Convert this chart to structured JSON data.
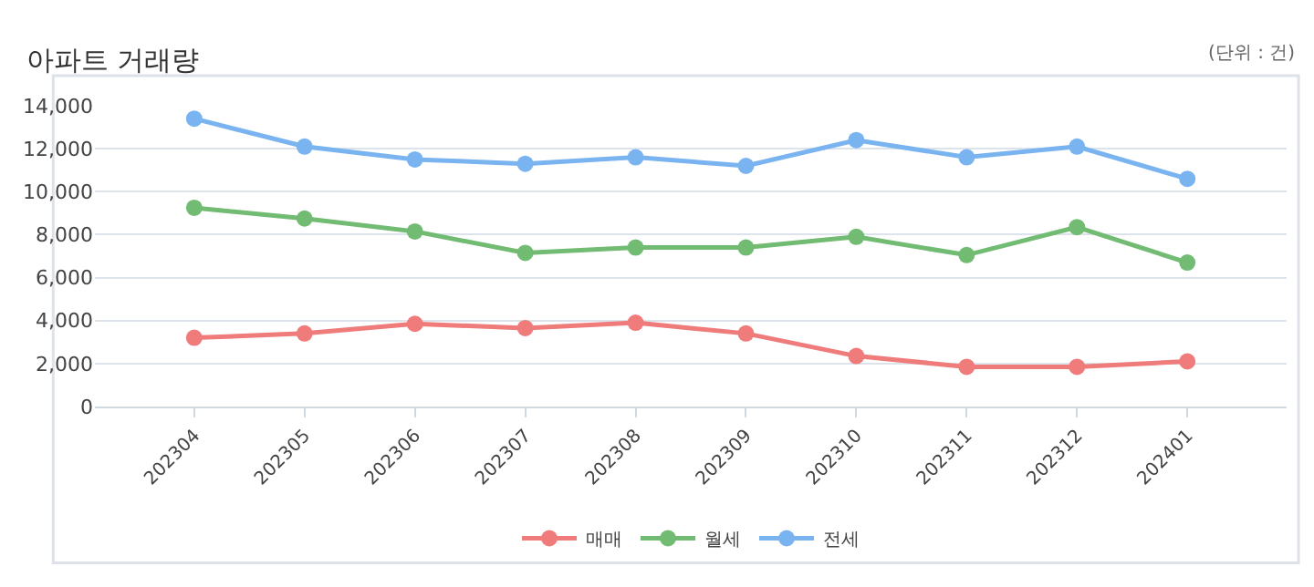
{
  "chart_data": {
    "type": "line",
    "title": "아파트 거래량",
    "annotations": [
      "(단위 : 건)"
    ],
    "categories": [
      "202304",
      "202305",
      "202306",
      "202307",
      "202308",
      "202309",
      "202310",
      "202311",
      "202312",
      "202401"
    ],
    "series": [
      {
        "name": "매매",
        "color": "#ef7b7b",
        "values": [
          3200,
          3400,
          3850,
          3650,
          3900,
          3400,
          2350,
          1850,
          1850,
          2100
        ]
      },
      {
        "name": "월세",
        "color": "#72bb72",
        "values": [
          9250,
          8750,
          8150,
          7150,
          7400,
          7400,
          7900,
          7050,
          8350,
          6700
        ]
      },
      {
        "name": "전세",
        "color": "#7ab4f0",
        "values": [
          13400,
          12100,
          11500,
          11300,
          11600,
          11200,
          12400,
          11600,
          12100,
          10600
        ]
      }
    ],
    "ylim": [
      0,
      14000
    ],
    "yticks": [
      {
        "value": 0,
        "label": "0"
      },
      {
        "value": 2000,
        "label": "2,000"
      },
      {
        "value": 4000,
        "label": "4,000"
      },
      {
        "value": 6000,
        "label": "6,000"
      },
      {
        "value": 8000,
        "label": "8,000"
      },
      {
        "value": 10000,
        "label": "10,000"
      },
      {
        "value": 12000,
        "label": "12,000"
      },
      {
        "value": 14000,
        "label": "14,000"
      }
    ],
    "grid": "y",
    "legend": "bottom",
    "marker": "circle",
    "line_style": "solid"
  }
}
